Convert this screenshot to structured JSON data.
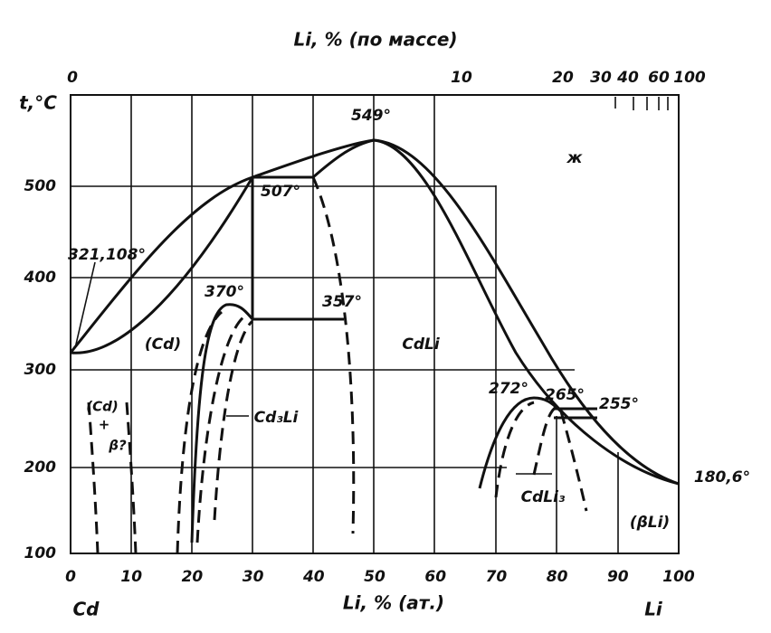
{
  "top_axis_title": "Li, % (по массе)",
  "top_ticks": [
    "0",
    "10",
    "20",
    "30",
    "40",
    "60",
    "100"
  ],
  "y_axis_title": "t,°C",
  "y_ticks": [
    "500",
    "400",
    "300",
    "200",
    "100"
  ],
  "x_ticks": [
    "0",
    "10",
    "20",
    "30",
    "40",
    "50",
    "60",
    "70",
    "80",
    "90",
    "100"
  ],
  "x_axis_title": "Li, % (ат.)",
  "left_element": "Cd",
  "right_element": "Li",
  "annotations": [
    "321,108°",
    "549°",
    "507°",
    "370°",
    "357°",
    "(Cd)",
    "CdLi",
    "ж",
    "272°",
    "265°",
    "255°",
    "180,6°",
    "Cd₃Li",
    "CdLi₃",
    "(βLi)",
    "(Cd)",
    "+",
    "β?"
  ]
}
